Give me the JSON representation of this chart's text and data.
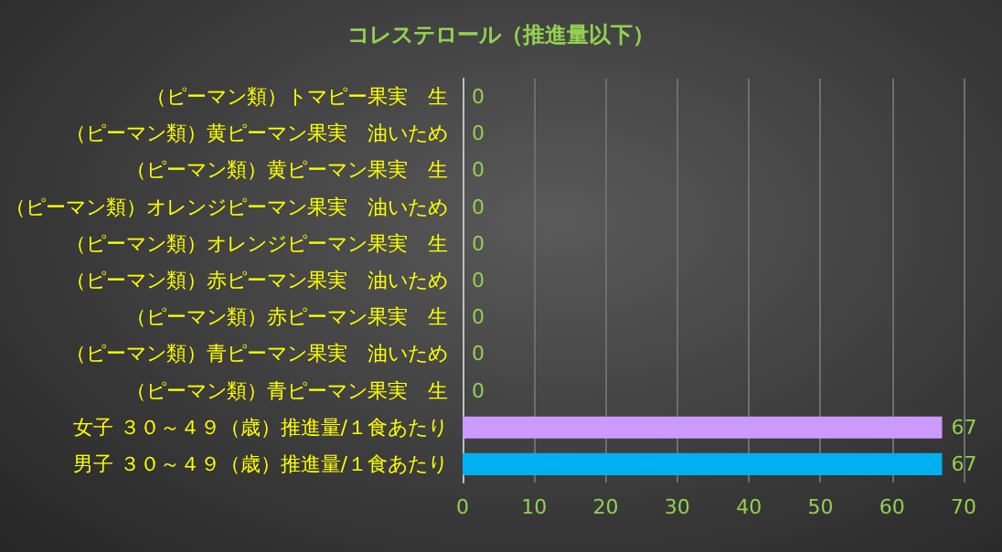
{
  "chart_data": {
    "type": "bar",
    "orientation": "horizontal",
    "title": "コレステロール（推進量以下）",
    "categories": [
      "（ピーマン類）トマピー果実　生",
      "（ピーマン類）黄ピーマン果実　油いため",
      "（ピーマン類）黄ピーマン果実　生",
      "（ピーマン類）オレンジピーマン果実　油いため",
      "（ピーマン類）オレンジピーマン果実　生",
      "（ピーマン類）赤ピーマン果実　油いため",
      "（ピーマン類）赤ピーマン果実　生",
      "（ピーマン類）青ピーマン果実　油いため",
      "（ピーマン類）青ピーマン果実　生",
      "女子 ３０～４９（歳）推進量/１食あたり",
      "男子 ３０～４９（歳）推進量/１食あたり"
    ],
    "values": [
      0,
      0,
      0,
      0,
      0,
      0,
      0,
      0,
      0,
      67,
      67
    ],
    "colors": [
      "#00b0f0",
      "#00b0f0",
      "#00b0f0",
      "#00b0f0",
      "#00b0f0",
      "#00b0f0",
      "#00b0f0",
      "#00b0f0",
      "#00b0f0",
      "#cc99ff",
      "#00b0f0"
    ],
    "xlim": [
      0,
      70
    ],
    "xticks": [
      0,
      10,
      20,
      30,
      40,
      50,
      60,
      70
    ],
    "grid": "x",
    "data_labels": true
  }
}
